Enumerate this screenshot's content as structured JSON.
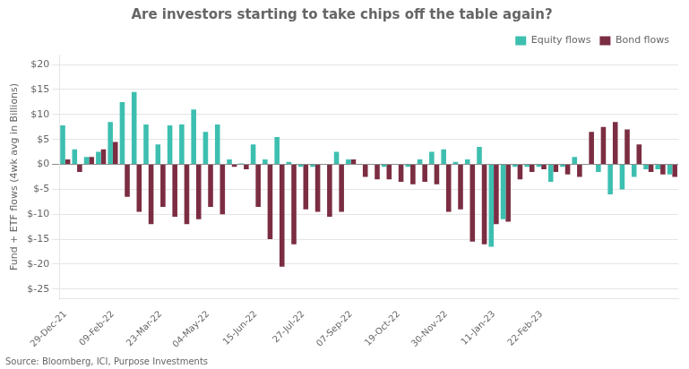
{
  "chart_data": {
    "type": "bar",
    "title": "Are investors starting to take chips off the table again?",
    "ylabel": "Fund + ETF flows (4wk avg in Billions)",
    "annotations": [
      "Source: Bloomberg, ICI, Purpose Investments"
    ],
    "categories": [
      "29-Dec-21",
      null,
      null,
      null,
      "09-Feb-22",
      null,
      null,
      null,
      "23-Mar-22",
      null,
      null,
      null,
      "04-May-22",
      null,
      null,
      null,
      "15-Jun-22",
      null,
      null,
      null,
      "27-Jul-22",
      null,
      null,
      null,
      "07-Sep-22",
      null,
      null,
      null,
      "19-Oct-22",
      null,
      null,
      null,
      "30-Nov-22",
      null,
      null,
      null,
      "11-Jan-23",
      null,
      null,
      null,
      "22-Feb-23",
      null,
      null,
      null,
      null,
      null,
      null,
      null,
      null,
      null,
      null,
      null
    ],
    "series": [
      {
        "name": "Equity flows",
        "color": "#3DBFB0",
        "values": [
          7.8,
          3.0,
          1.5,
          2.5,
          8.5,
          12.5,
          14.5,
          8.0,
          4.0,
          7.8,
          8.0,
          11.0,
          6.5,
          8.0,
          1.0,
          0.2,
          4.0,
          1.0,
          5.5,
          0.5,
          -0.5,
          -0.5,
          0.0,
          2.5,
          1.0,
          0.0,
          0.0,
          -0.5,
          0.0,
          -0.5,
          1.0,
          2.5,
          3.0,
          0.5,
          1.0,
          3.5,
          -16.5,
          -11.0,
          -0.5,
          -0.5,
          -0.5,
          -3.5,
          -0.5,
          1.5,
          0.0,
          -1.5,
          -6.0,
          -5.0,
          -2.5,
          -1.0,
          -1.0,
          -2.0
        ]
      },
      {
        "name": "Bond flows",
        "color": "#7B2D42",
        "values": [
          1.0,
          -1.5,
          1.5,
          3.0,
          4.5,
          -6.5,
          -9.5,
          -12.0,
          -8.5,
          -10.5,
          -12.0,
          -11.0,
          -8.5,
          -10.0,
          -0.5,
          -1.0,
          -8.5,
          -15.0,
          -20.5,
          -16.0,
          -9.0,
          -9.5,
          -10.5,
          -9.5,
          1.0,
          -2.5,
          -3.0,
          -3.0,
          -3.5,
          -4.0,
          -3.5,
          -4.0,
          -9.5,
          -9.0,
          -15.5,
          -16.0,
          -12.0,
          -11.5,
          -3.0,
          -1.5,
          -1.0,
          -1.5,
          -2.0,
          -2.5,
          6.5,
          7.5,
          8.5,
          7.0,
          4.0,
          -1.5,
          -2.0,
          -2.5
        ]
      }
    ],
    "ylim": [
      -27,
      22
    ],
    "yticks": [
      {
        "value": -25,
        "label": "$-25"
      },
      {
        "value": -20,
        "label": "$-20"
      },
      {
        "value": -15,
        "label": "$-15"
      },
      {
        "value": -10,
        "label": "$-10"
      },
      {
        "value": -5,
        "label": "$-5"
      },
      {
        "value": 0,
        "label": "$0"
      },
      {
        "value": 5,
        "label": "$5"
      },
      {
        "value": 10,
        "label": "$10"
      },
      {
        "value": 15,
        "label": "$15"
      },
      {
        "value": 20,
        "label": "$20"
      }
    ],
    "grid": true,
    "legend": "upper right"
  }
}
